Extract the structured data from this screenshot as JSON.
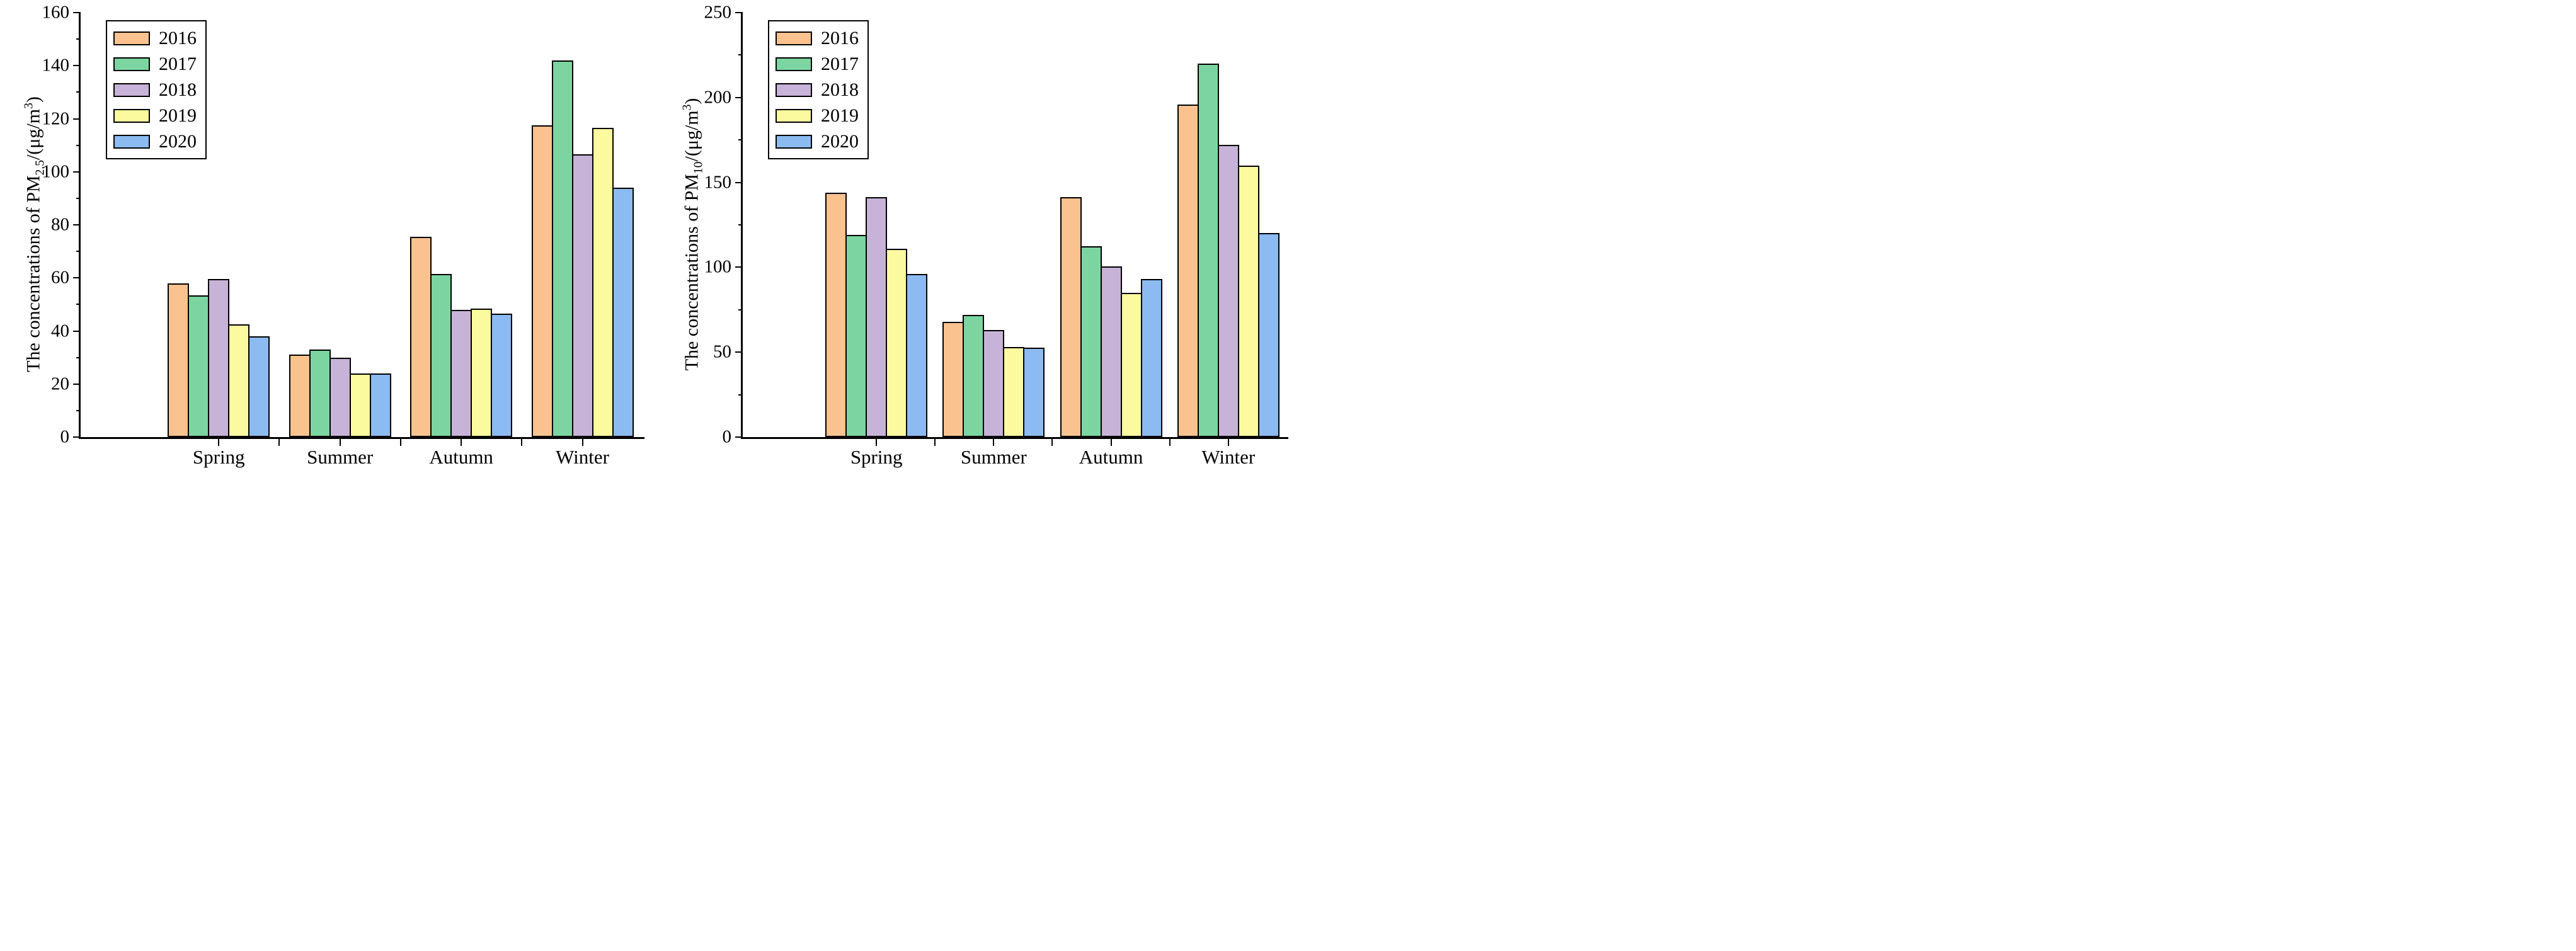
{
  "figure": {
    "background": "#ffffff",
    "bar_border_color": "#000000",
    "axis_color": "#000000",
    "series_colors": [
      "#FAC28E",
      "#7CD5A1",
      "#C6B3D7",
      "#FBFA9F",
      "#8CBBF1"
    ]
  },
  "chart_data": [
    {
      "type": "bar",
      "title": "",
      "ylabel_parts": {
        "prefix": "The concentrations of PM",
        "sub": "2.5",
        "mid": "/(μg/m",
        "sup": "3",
        "suffix": ")"
      },
      "categories": [
        "Spring",
        "Summer",
        "Autumn",
        "Winter"
      ],
      "series": [
        {
          "name": "2016",
          "values": [
            58,
            31,
            75.5,
            117.5
          ]
        },
        {
          "name": "2017",
          "values": [
            53.5,
            33,
            61.5,
            142
          ]
        },
        {
          "name": "2018",
          "values": [
            59.5,
            30,
            48,
            106.5
          ]
        },
        {
          "name": "2019",
          "values": [
            42.5,
            24,
            48.5,
            116.5
          ]
        },
        {
          "name": "2020",
          "values": [
            38,
            24,
            46.5,
            94
          ]
        }
      ],
      "ylim": [
        0,
        160
      ],
      "yticks": [
        0,
        20,
        40,
        60,
        80,
        100,
        120,
        140,
        160
      ],
      "yminor_step": 10,
      "legend_position": "top-left",
      "legend_labels": [
        "2016",
        "2017",
        "2018",
        "2019",
        "2020"
      ],
      "grid": false
    },
    {
      "type": "bar",
      "title": "",
      "ylabel_parts": {
        "prefix": "The concentrations of PM",
        "sub": "10",
        "mid": "/(μg/m",
        "sup": "3",
        "suffix": ")"
      },
      "categories": [
        "Spring",
        "Summer",
        "Autumn",
        "Winter"
      ],
      "series": [
        {
          "name": "2016",
          "values": [
            144,
            68,
            141.5,
            196
          ]
        },
        {
          "name": "2017",
          "values": [
            119,
            72,
            112.5,
            220
          ]
        },
        {
          "name": "2018",
          "values": [
            141.5,
            63,
            100.5,
            172
          ]
        },
        {
          "name": "2019",
          "values": [
            111,
            53,
            85,
            160
          ]
        },
        {
          "name": "2020",
          "values": [
            96,
            52.5,
            93,
            120
          ]
        }
      ],
      "ylim": [
        0,
        250
      ],
      "yticks": [
        0,
        50,
        100,
        150,
        200,
        250
      ],
      "yminor_step": 25,
      "legend_position": "top-left",
      "legend_labels": [
        "2016",
        "2017",
        "2018",
        "2019",
        "2020"
      ],
      "grid": false
    }
  ]
}
